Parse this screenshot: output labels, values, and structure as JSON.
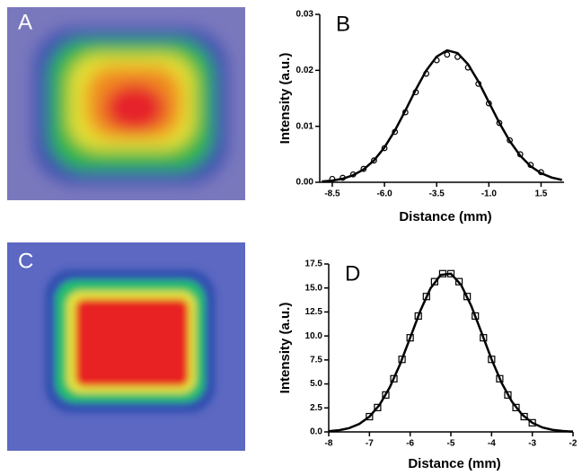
{
  "images": [
    {
      "label": "A"
    },
    {
      "label": "C"
    }
  ],
  "chart_data": [
    {
      "type": "line",
      "panel_label": "B",
      "xlabel": "Distance (mm)",
      "ylabel": "Intensity (a.u.)",
      "xlim": [
        -9.1,
        2.6
      ],
      "ylim": [
        0,
        0.03
      ],
      "xticks": [
        -8.5,
        {
          "value": -6,
          "label": "-6.0"
        },
        -3.5,
        {
          "value": -1,
          "label": "-1.0"
        },
        1.5
      ],
      "yticks": [
        {
          "value": 0,
          "label": "0.00"
        },
        0.01,
        0.02,
        0.03
      ],
      "series": [
        {
          "style": "line",
          "color": "#000000",
          "x": [
            -9,
            -8.5,
            -8,
            -7.5,
            -7,
            -6.5,
            -6,
            -5.5,
            -5,
            -4.5,
            -4,
            -3.5,
            -3,
            -2.5,
            -2,
            -1.5,
            -1,
            -0.5,
            0,
            0.5,
            1,
            1.5,
            2,
            2.5
          ],
          "values": [
            0.00014,
            0.0003,
            0.00064,
            0.00126,
            0.0023,
            0.00392,
            0.00624,
            0.00925,
            0.01281,
            0.01656,
            0.01996,
            0.02245,
            0.02357,
            0.02308,
            0.0211,
            0.01799,
            0.01431,
            0.01063,
            0.00736,
            0.00476,
            0.00287,
            0.00162,
            0.00085,
            0.00042
          ]
        },
        {
          "style": "circle",
          "color": "#000000",
          "x": [
            -8.5,
            -8,
            -7.5,
            -7,
            -6.5,
            -6,
            -5.5,
            -5,
            -4.5,
            -4,
            -3.5,
            -3,
            -2.5,
            -2,
            -1.5,
            -1,
            -0.5,
            0,
            0.5,
            1,
            1.5
          ],
          "values": [
            0.0006,
            0.0008,
            0.0014,
            0.0024,
            0.0039,
            0.0061,
            0.009,
            0.0125,
            0.0161,
            0.0194,
            0.0218,
            0.0228,
            0.0224,
            0.0205,
            0.0176,
            0.0141,
            0.0106,
            0.0075,
            0.005,
            0.0031,
            0.0018
          ]
        }
      ]
    },
    {
      "type": "line",
      "panel_label": "D",
      "xlabel": "Distance (mm)",
      "ylabel": "Intensity (a.u.)",
      "xlim": [
        -8,
        -2
      ],
      "ylim": [
        0,
        17.5
      ],
      "xticks": [
        -8,
        -7,
        -6,
        -5,
        -4,
        -3,
        -2
      ],
      "yticks": [
        {
          "value": 0,
          "label": "0.0"
        },
        2.5,
        {
          "value": 5,
          "label": "5.0"
        },
        7.5,
        {
          "value": 10,
          "label": "10.0"
        },
        12.5,
        {
          "value": 15,
          "label": "15.0"
        },
        17.5
      ],
      "series": [
        {
          "style": "line",
          "color": "#000000",
          "x": [
            -8,
            -7.75,
            -7.5,
            -7.25,
            -7,
            -6.75,
            -6.5,
            -6.25,
            -6,
            -5.75,
            -5.5,
            -5.25,
            -5,
            -4.75,
            -4.5,
            -4.25,
            -4,
            -3.75,
            -3.5,
            -3.25,
            -3,
            -2.75,
            -2.5,
            -2.25,
            -2
          ],
          "values": [
            0.07,
            0.17,
            0.39,
            0.83,
            1.59,
            2.83,
            4.65,
            7.03,
            9.81,
            12.62,
            14.96,
            16.36,
            16.49,
            15.33,
            13.14,
            10.38,
            7.56,
            5.08,
            3.15,
            1.8,
            0.95,
            0.46,
            0.21,
            0.09,
            0.03
          ]
        },
        {
          "style": "square",
          "color": "#000000",
          "x": [
            -7,
            -6.8,
            -6.6,
            -6.4,
            -6.2,
            -6,
            -5.8,
            -5.6,
            -5.4,
            -5.2,
            -5,
            -4.8,
            -4.6,
            -4.4,
            -4.2,
            -4,
            -3.8,
            -3.6,
            -3.4,
            -3.2,
            -3
          ],
          "values": [
            1.59,
            2.54,
            3.85,
            5.54,
            7.56,
            9.81,
            12.08,
            14.11,
            15.66,
            16.49,
            16.49,
            15.66,
            14.11,
            12.08,
            9.81,
            7.56,
            5.54,
            3.85,
            2.54,
            1.59,
            0.95
          ]
        }
      ]
    }
  ]
}
